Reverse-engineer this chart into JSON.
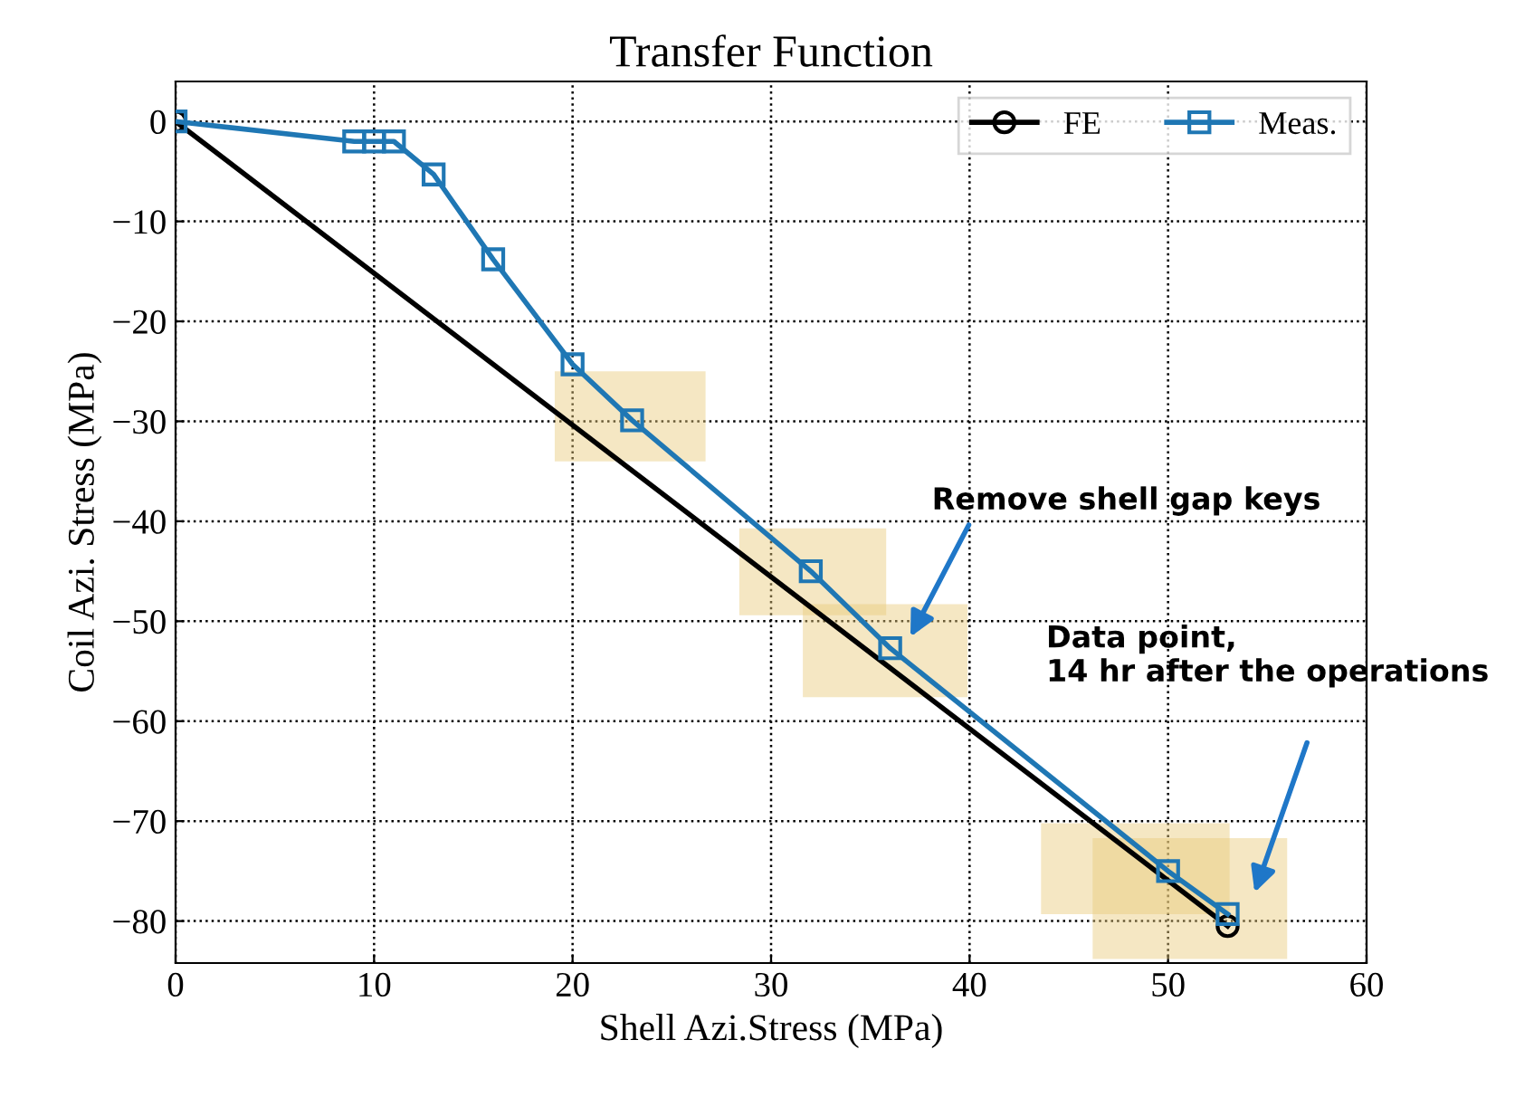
{
  "chart_data": {
    "type": "line",
    "title": "Transfer Function",
    "xlabel": "Shell Azi.Stress (MPa)",
    "ylabel": "Coil Azi. Stress (MPa)",
    "series": [
      {
        "name": "FE",
        "color": "#000000",
        "marker": "circle",
        "x": [
          0,
          53
        ],
        "values": [
          0,
          -80.5
        ]
      },
      {
        "name": "Meas.",
        "color": "#1f77b4",
        "marker": "square",
        "x": [
          0,
          9,
          10,
          11,
          13,
          16,
          20,
          23,
          32,
          36,
          50,
          53
        ],
        "values": [
          0,
          -2,
          -2,
          -2,
          -5.3,
          -13.8,
          -24.3,
          -29.9,
          -45,
          -52.7,
          -75,
          -79.3
        ]
      }
    ],
    "xlim": [
      0,
      60
    ],
    "xticks": [
      0,
      10,
      20,
      30,
      40,
      50,
      60
    ],
    "ylim": [
      -84.2,
      4
    ],
    "yticks": [
      {
        "value": 0,
        "label": "0"
      },
      {
        "value": -10,
        "label": "−10"
      },
      {
        "value": -20,
        "label": "−20"
      },
      {
        "value": -30,
        "label": "−30"
      },
      {
        "value": -40,
        "label": "−40"
      },
      {
        "value": -50,
        "label": "−50"
      },
      {
        "value": -60,
        "label": "−60"
      },
      {
        "value": -70,
        "label": "−70"
      },
      {
        "value": -80,
        "label": "−80"
      }
    ],
    "grid": true,
    "legend": "top right",
    "line_style": "solid",
    "annotations": [
      "Remove shell gap keys",
      "Data point,\n14 hr after the operations"
    ]
  }
}
